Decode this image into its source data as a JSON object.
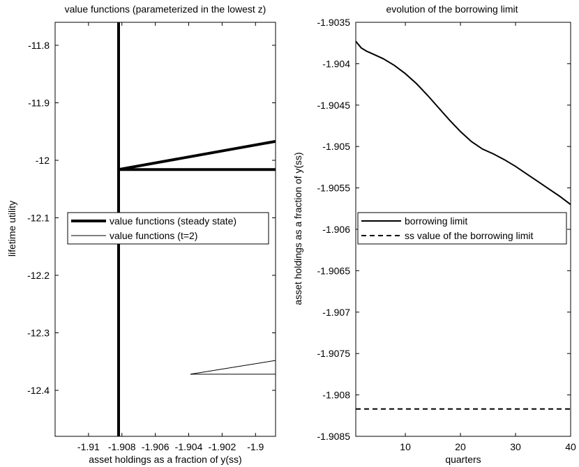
{
  "chart_data": [
    {
      "type": "line",
      "title": "value functions (parameterized in the lowest z)",
      "xlabel": "asset holdings as a fraction of y(ss)",
      "ylabel": "lifetime utility",
      "xlim": [
        -1.912,
        -1.8988
      ],
      "ylim": [
        -12.48,
        -11.76
      ],
      "xticks": [
        -1.91,
        -1.908,
        -1.906,
        -1.904,
        -1.902,
        -1.9
      ],
      "xtick_labels": [
        "-1.91",
        "-1.908",
        "-1.906",
        "-1.904",
        "-1.902",
        "-1.9"
      ],
      "yticks": [
        -11.8,
        -11.9,
        -12.0,
        -12.1,
        -12.2,
        -12.3,
        -12.4
      ],
      "ytick_labels": [
        "-11.8",
        "-11.9",
        "-12",
        "-12.1",
        "-12.2",
        "-12.3",
        "-12.4"
      ],
      "grid": false,
      "legend_position": "center",
      "series": [
        {
          "name": "value functions (steady state)",
          "style": "thick-solid",
          "x": [
            -1.9082,
            -1.9082,
            -1.8988,
            -1.9082,
            -1.8988
          ],
          "y": [
            -12.48,
            -11.76,
            -12.016,
            -12.016,
            -11.967
          ],
          "segments": [
            {
              "x": [
                -1.9082,
                -1.9082
              ],
              "y": [
                -12.48,
                -11.76
              ]
            },
            {
              "x": [
                -1.9082,
                -1.8988
              ],
              "y": [
                -12.016,
                -12.016
              ]
            },
            {
              "x": [
                -1.9082,
                -1.8988
              ],
              "y": [
                -12.016,
                -11.967
              ]
            }
          ]
        },
        {
          "name": "value functions (t=2)",
          "style": "thin-solid",
          "segments": [
            {
              "x": [
                -1.9039,
                -1.8988
              ],
              "y": [
                -12.372,
                -12.372
              ]
            },
            {
              "x": [
                -1.9039,
                -1.8988
              ],
              "y": [
                -12.372,
                -12.348
              ]
            }
          ]
        }
      ]
    },
    {
      "type": "line",
      "title": "evolution of the borrowing limit",
      "xlabel": "quarters",
      "ylabel": "asset holdings as a fraction of y(ss)",
      "xlim": [
        1,
        40
      ],
      "ylim": [
        -1.9085,
        -1.9035
      ],
      "xticks": [
        10,
        20,
        30,
        40
      ],
      "xtick_labels": [
        "10",
        "20",
        "30",
        "40"
      ],
      "yticks": [
        -1.9035,
        -1.904,
        -1.9045,
        -1.905,
        -1.9055,
        -1.906,
        -1.9065,
        -1.907,
        -1.9075,
        -1.908,
        -1.9085
      ],
      "ytick_labels": [
        "-1.9035",
        "-1.904",
        "-1.9045",
        "-1.905",
        "-1.9055",
        "-1.906",
        "-1.9065",
        "-1.907",
        "-1.9075",
        "-1.908",
        "-1.9085"
      ],
      "grid": false,
      "legend_position": "center",
      "series": [
        {
          "name": "borrowing limit",
          "style": "solid",
          "x": [
            1,
            2,
            3,
            4,
            6,
            8,
            10,
            12,
            14,
            16,
            18,
            20,
            22,
            24,
            26,
            28,
            30,
            32,
            34,
            36,
            38,
            40
          ],
          "y": [
            -1.90373,
            -1.90381,
            -1.90385,
            -1.90388,
            -1.90394,
            -1.90402,
            -1.90412,
            -1.90424,
            -1.90438,
            -1.90453,
            -1.90468,
            -1.90482,
            -1.90494,
            -1.90503,
            -1.90509,
            -1.90516,
            -1.90524,
            -1.90533,
            -1.90542,
            -1.90551,
            -1.9056,
            -1.9057
          ]
        },
        {
          "name": "ss value of the borrowing limit",
          "style": "dashed",
          "x": [
            1,
            40
          ],
          "y": [
            -1.90817,
            -1.90817
          ]
        }
      ]
    }
  ]
}
